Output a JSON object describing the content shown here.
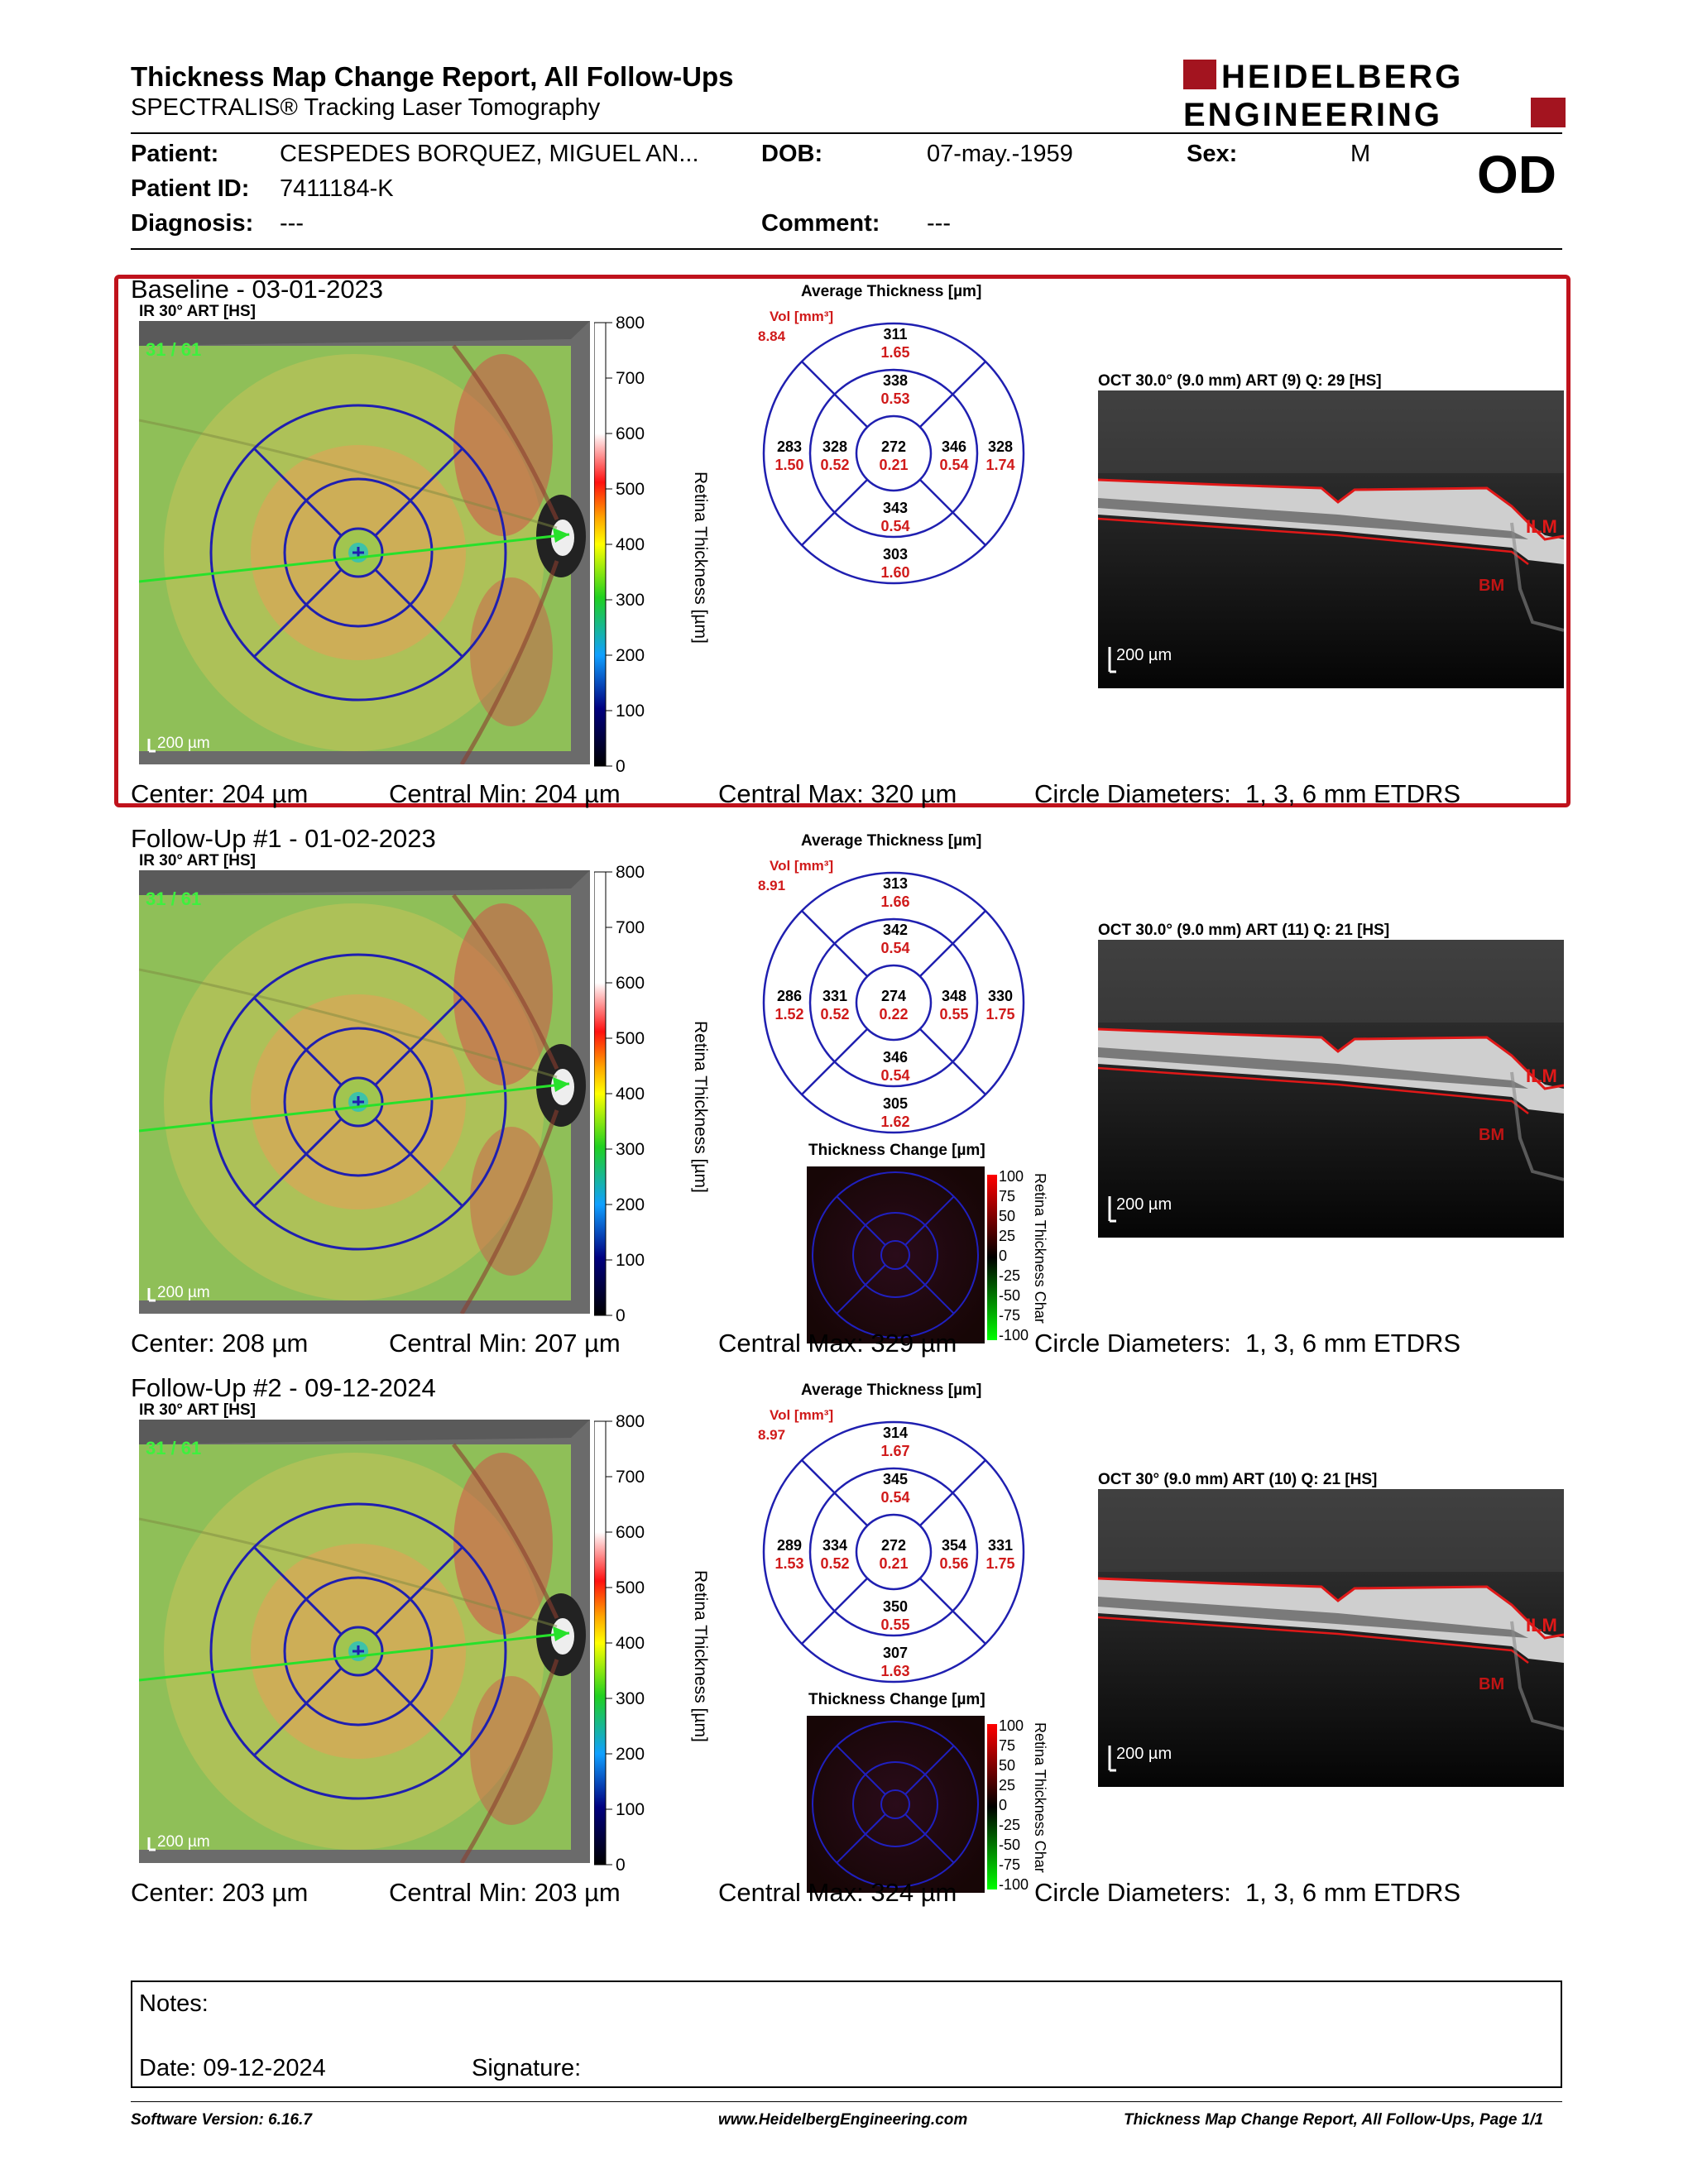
{
  "header": {
    "title": "Thickness Map Change Report, All Follow-Ups",
    "subtitle": "SPECTRALIS® Tracking Laser Tomography",
    "logo_line1": "HEIDELBERG",
    "logo_line2": "ENGINEERING"
  },
  "patient": {
    "patient_label": "Patient:",
    "patient_value": "CESPEDES BORQUEZ, MIGUEL AN...",
    "dob_label": "DOB:",
    "dob_value": "07-may.-1959",
    "sex_label": "Sex:",
    "sex_value": "M",
    "id_label": "Patient ID:",
    "id_value": "7411184-K",
    "diagnosis_label": "Diagnosis:",
    "diagnosis_value": "---",
    "comment_label": "Comment:",
    "comment_value": "---",
    "eye": "OD"
  },
  "common": {
    "colorbar_ticks": [
      "800",
      "700",
      "600",
      "500",
      "400",
      "300",
      "200",
      "100",
      "0"
    ],
    "colorbar_label": "Retina Thickness [µm]",
    "change_ticks": [
      "100",
      "75",
      "50",
      "25",
      "0",
      "-25",
      "-50",
      "-75",
      "-100"
    ],
    "change_label": "Retina Thickness Char",
    "scale_200": "200 µm",
    "grid_title": "Average Thickness [µm]",
    "vol_label": "Vol [mm³]",
    "change_title": "Thickness Change [µm]",
    "ilm": "ILM",
    "bm": "BM",
    "center_label": "Center:",
    "min_label": "Central Min:",
    "max_label": "Central Max:",
    "circle_label": "Circle Diameters:",
    "circle_value": "1, 3, 6 mm ETDRS"
  },
  "sections": [
    {
      "title": "Baseline - 03-01-2023",
      "ir_label": "IR 30° ART [HS]",
      "frames": "31 / 61",
      "vol": "8.84",
      "grid": {
        "top_outer": [
          "311",
          "1.65"
        ],
        "top_inner": [
          "338",
          "0.53"
        ],
        "left_outer": [
          "283",
          "1.50"
        ],
        "left_inner": [
          "328",
          "0.52"
        ],
        "center": [
          "272",
          "0.21"
        ],
        "right_inner": [
          "346",
          "0.54"
        ],
        "right_outer": [
          "328",
          "1.74"
        ],
        "bottom_inner": [
          "343",
          "0.54"
        ],
        "bottom_outer": [
          "303",
          "1.60"
        ]
      },
      "oct_label": "OCT 30.0° (9.0 mm) ART (9) Q: 29 [HS]",
      "center": "204 µm",
      "central_min": "204 µm",
      "central_max": "320 µm"
    },
    {
      "title": "Follow-Up #1 - 01-02-2023",
      "ir_label": "IR 30° ART [HS]",
      "frames": "31 / 61",
      "vol": "8.91",
      "grid": {
        "top_outer": [
          "313",
          "1.66"
        ],
        "top_inner": [
          "342",
          "0.54"
        ],
        "left_outer": [
          "286",
          "1.52"
        ],
        "left_inner": [
          "331",
          "0.52"
        ],
        "center": [
          "274",
          "0.22"
        ],
        "right_inner": [
          "348",
          "0.55"
        ],
        "right_outer": [
          "330",
          "1.75"
        ],
        "bottom_inner": [
          "346",
          "0.54"
        ],
        "bottom_outer": [
          "305",
          "1.62"
        ]
      },
      "oct_label": "OCT 30.0° (9.0 mm) ART (11) Q: 21 [HS]",
      "center": "208 µm",
      "central_min": "207 µm",
      "central_max": "329 µm"
    },
    {
      "title": "Follow-Up #2 - 09-12-2024",
      "ir_label": "IR 30° ART [HS]",
      "frames": "31 / 61",
      "vol": "8.97",
      "grid": {
        "top_outer": [
          "314",
          "1.67"
        ],
        "top_inner": [
          "345",
          "0.54"
        ],
        "left_outer": [
          "289",
          "1.53"
        ],
        "left_inner": [
          "334",
          "0.52"
        ],
        "center": [
          "272",
          "0.21"
        ],
        "right_inner": [
          "354",
          "0.56"
        ],
        "right_outer": [
          "331",
          "1.75"
        ],
        "bottom_inner": [
          "350",
          "0.55"
        ],
        "bottom_outer": [
          "307",
          "1.63"
        ]
      },
      "oct_label": "OCT 30° (9.0 mm) ART (10) Q: 21 [HS]",
      "center": "203 µm",
      "central_min": "203 µm",
      "central_max": "324 µm"
    }
  ],
  "notes": {
    "notes_label": "Notes:",
    "date_label": "Date:",
    "date_value": "09-12-2024",
    "signature_label": "Signature:"
  },
  "footer": {
    "software": "Software Version: 6.16.7",
    "website": "www.HeidelbergEngineering.com",
    "page": "Thickness Map Change Report, All Follow-Ups, Page 1/1"
  }
}
